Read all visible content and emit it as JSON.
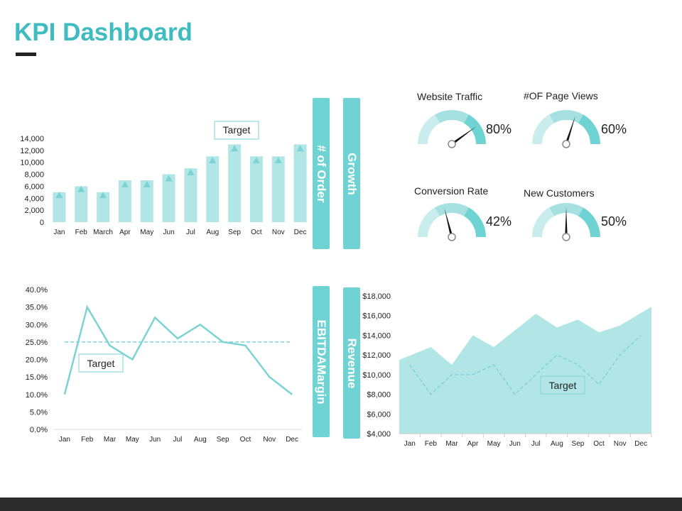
{
  "page": {
    "title": "KPI Dashboard"
  },
  "panels": {
    "orders_label": "# of Order",
    "growth_label": "Growth",
    "ebitda_label": "EBITDAMargin",
    "revenue_label": "Revenue"
  },
  "colors": {
    "accent": "#3fbcc0",
    "bar": "#b2e6e6",
    "marker": "#7dd3d3",
    "line": "#7dd3d3",
    "area": "#b2e6e6",
    "pill": "#6fd3d3",
    "footer": "#2b2b2b"
  },
  "gauges": [
    {
      "title": "Website Traffic",
      "value": "80%",
      "pct": 80
    },
    {
      "title": "#OF Page Views",
      "value": "60%",
      "pct": 60
    },
    {
      "title": "Conversion Rate",
      "value": "42%",
      "pct": 42
    },
    {
      "title": "New Customers",
      "value": "50%",
      "pct": 50
    }
  ],
  "chart_data": [
    {
      "type": "bar",
      "categories": [
        "Jan",
        "Feb",
        "March",
        "Apr",
        "May",
        "Jun",
        "Jul",
        "Aug",
        "Sep",
        "Oct",
        "Nov",
        "Dec"
      ],
      "series": [
        {
          "values": [
            5000,
            6000,
            5000,
            7000,
            7000,
            8000,
            9000,
            11000,
            13000,
            11000,
            11000,
            13000
          ]
        },
        {
          "name": "Target",
          "values": [
            4500,
            5500,
            4500,
            6300,
            6300,
            7300,
            8300,
            10300,
            12300,
            10300,
            10300,
            12300
          ]
        }
      ],
      "yticks": [
        "0",
        "2,000",
        "4,000",
        "6,000",
        "8,000",
        "10,000",
        "12,000",
        "14,000"
      ],
      "ylim": [
        0,
        14000
      ],
      "annotation": "Target"
    },
    {
      "type": "line",
      "categories": [
        "Jan",
        "Feb",
        "Mar",
        "May",
        "Jun",
        "Jul",
        "Aug",
        "Sep",
        "Oct",
        "Nov",
        "Dec"
      ],
      "series": [
        {
          "values": [
            10,
            35,
            24,
            20,
            32,
            26,
            30,
            25,
            24,
            15,
            10
          ]
        },
        {
          "name": "Target",
          "values": [
            25,
            25,
            25,
            25,
            25,
            25,
            25,
            25,
            25,
            25,
            25
          ]
        }
      ],
      "yticks": [
        "0.0%",
        "5.0%",
        "10.0%",
        "15.0%",
        "20.0%",
        "25.0%",
        "30.0%",
        "35.0%",
        "40.0%"
      ],
      "ylim": [
        0,
        40
      ],
      "annotation": "Target"
    },
    {
      "type": "area",
      "categories": [
        "Jan",
        "Feb",
        "Mar",
        "Apr",
        "May",
        "Jun",
        "Jul",
        "Aug",
        "Sep",
        "Oct",
        "Nov",
        "Dec"
      ],
      "series": [
        {
          "values": [
            11500,
            12800,
            11000,
            14000,
            12800,
            14500,
            16200,
            14800,
            15600,
            14300,
            15000,
            16900
          ]
        },
        {
          "name": "Target",
          "values": [
            11000,
            8000,
            10000,
            10000,
            11000,
            8000,
            10000,
            12000,
            11000,
            9000,
            12000,
            14000
          ]
        }
      ],
      "yticks": [
        "$4,000",
        "$6,000",
        "$8,000",
        "$10,000",
        "$12,000",
        "$14,000",
        "$16,000",
        "$18,000"
      ],
      "ylim": [
        4000,
        18000
      ],
      "annotation": "Target"
    }
  ]
}
